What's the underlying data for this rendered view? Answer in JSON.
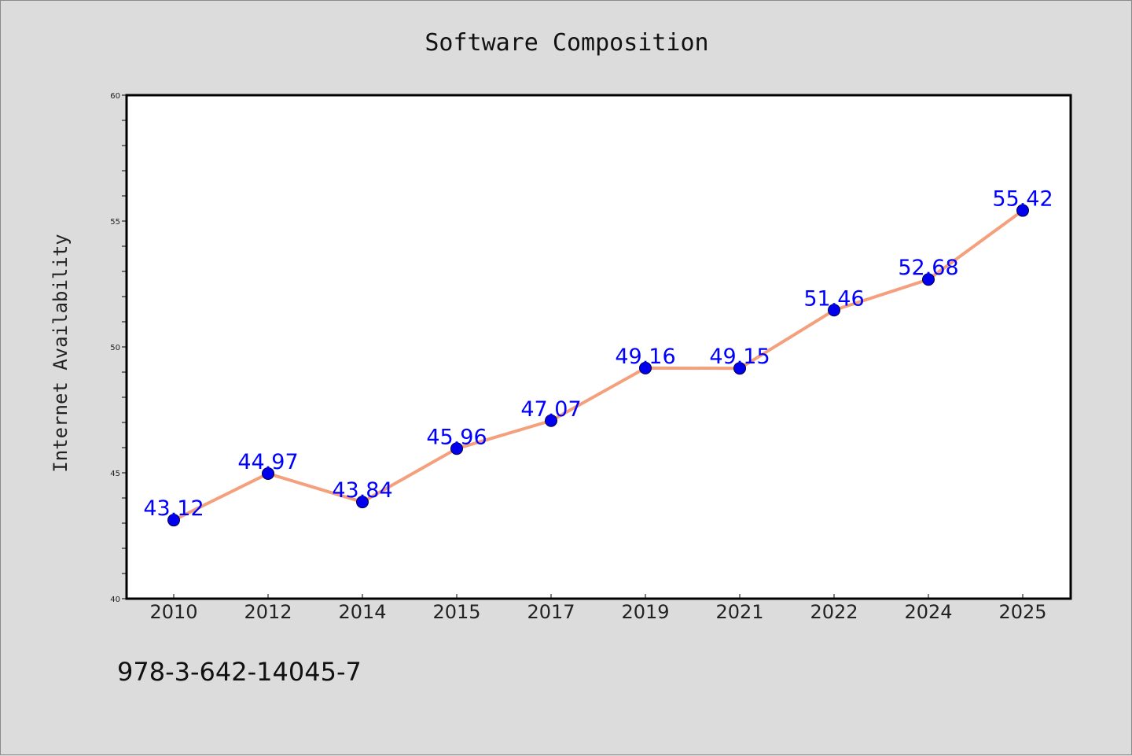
{
  "chart_data": {
    "type": "line",
    "title": "Software Composition",
    "xlabel": "",
    "ylabel": "Internet Availability",
    "categories": [
      "2010",
      "2012",
      "2014",
      "2015",
      "2017",
      "2019",
      "2021",
      "2022",
      "2024",
      "2025"
    ],
    "series": [
      {
        "values": [
          43.12,
          44.97,
          43.84,
          45.96,
          47.07,
          49.16,
          49.15,
          51.46,
          52.68,
          55.42
        ],
        "data_labels": [
          "43.12",
          "44.97",
          "43.84",
          "45.96",
          "47.07",
          "49.16",
          "49.15",
          "51.46",
          "52.68",
          "55.42"
        ],
        "line_color": "#f4a07c",
        "marker_color": "#0000ee",
        "label_color": "#0000ff"
      }
    ],
    "ylim": [
      40,
      60
    ],
    "yticks": [
      "40",
      "45",
      "50",
      "55",
      "60"
    ],
    "grid": false,
    "legend": "none"
  },
  "footer": {
    "isbn": "978-3-642-14045-7"
  }
}
